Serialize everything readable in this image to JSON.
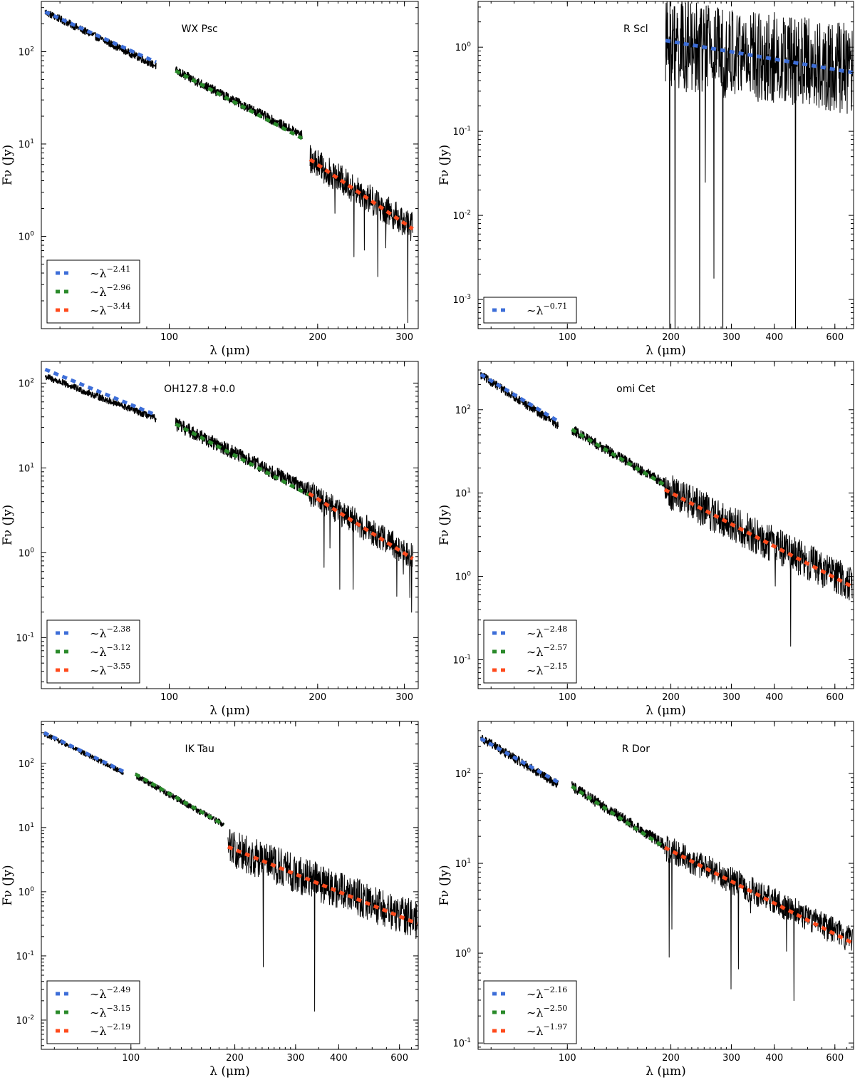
{
  "chart_data": [
    {
      "type": "line",
      "title": "WX Psc",
      "xlabel": "λ (μm)",
      "ylabel": "Fν (Jy)",
      "xscale": "log",
      "yscale": "log",
      "xlim": [
        55,
        320
      ],
      "ylim": [
        0.1,
        350
      ],
      "xticks": [
        {
          "v": 100,
          "label": "100"
        },
        {
          "v": 200,
          "label": "200"
        },
        {
          "v": 300,
          "label": "300"
        }
      ],
      "yticks": [
        {
          "v": 1,
          "base": "10",
          "exp": "0"
        },
        {
          "v": 10,
          "base": "10",
          "exp": "1"
        },
        {
          "v": 100,
          "base": "10",
          "exp": "2"
        }
      ],
      "legend_position": "lower-left",
      "segments": [
        {
          "x0": 56,
          "x1": 94,
          "y0": 270,
          "y1": 70,
          "noise": 0.04
        },
        {
          "x0": 103,
          "x1": 186,
          "y0": 62,
          "y1": 12.5,
          "noise": 0.05
        },
        {
          "x0": 193,
          "x1": 312,
          "y0": 6.8,
          "y1": 1.25,
          "noise": 0.16
        }
      ],
      "series": [
        {
          "name": "~λ^-2.41",
          "legend_base": "∼λ",
          "exponent": "−2.41",
          "color": "#3d6ed8",
          "x0": 56,
          "x1": 94,
          "y0": 270,
          "y1": 77
        },
        {
          "name": "~λ^-2.96",
          "legend_base": "∼λ",
          "exponent": "−2.96",
          "color": "#2a8a2a",
          "x0": 103,
          "x1": 186,
          "y0": 62,
          "y1": 11.5
        },
        {
          "name": "~λ^-3.44",
          "legend_base": "∼λ",
          "exponent": "−3.44",
          "color": "#ff4a1c",
          "x0": 193,
          "x1": 312,
          "y0": 6.8,
          "y1": 1.2
        }
      ]
    },
    {
      "type": "line",
      "title": "R Scl",
      "xlabel": "λ (μm)",
      "ylabel": "Fν (Jy)",
      "xscale": "log",
      "yscale": "log",
      "xlim": [
        55,
        680
      ],
      "ylim": [
        0.00045,
        3.5
      ],
      "xticks": [
        {
          "v": 100,
          "label": "100"
        },
        {
          "v": 200,
          "label": "200"
        },
        {
          "v": 300,
          "label": "300"
        },
        {
          "v": 400,
          "label": "400"
        },
        {
          "v": 600,
          "label": "600"
        }
      ],
      "yticks": [
        {
          "v": 0.001,
          "base": "10",
          "exp": "-3"
        },
        {
          "v": 0.01,
          "base": "10",
          "exp": "-2"
        },
        {
          "v": 0.1,
          "base": "10",
          "exp": "-1"
        },
        {
          "v": 1,
          "base": "10",
          "exp": "0"
        }
      ],
      "legend_position": "lower-left",
      "segments": [
        {
          "x0": 193,
          "x1": 675,
          "y0": 1.1,
          "y1": 0.55,
          "noise": 0.55
        }
      ],
      "series": [
        {
          "name": "~λ^-0.71",
          "legend_base": "∼λ",
          "exponent": "−0.71",
          "color": "#3d6ed8",
          "x0": 193,
          "x1": 675,
          "y0": 1.2,
          "y1": 0.5
        }
      ]
    },
    {
      "type": "line",
      "title": "OH127.8 +0.0",
      "xlabel": "λ (μm)",
      "ylabel": "Fν (Jy)",
      "xscale": "log",
      "yscale": "log",
      "xlim": [
        55,
        320
      ],
      "ylim": [
        0.025,
        180
      ],
      "xticks": [
        {
          "v": 100,
          "label": "100"
        },
        {
          "v": 200,
          "label": "200"
        },
        {
          "v": 300,
          "label": "300"
        }
      ],
      "yticks": [
        {
          "v": 0.1,
          "base": "10",
          "exp": "-1"
        },
        {
          "v": 1,
          "base": "10",
          "exp": "0"
        },
        {
          "v": 10,
          "base": "10",
          "exp": "1"
        },
        {
          "v": 100,
          "base": "10",
          "exp": "2"
        }
      ],
      "legend_position": "lower-left",
      "segments": [
        {
          "x0": 56,
          "x1": 94,
          "y0": 120,
          "y1": 38,
          "noise": 0.04
        },
        {
          "x0": 103,
          "x1": 192,
          "y0": 33,
          "y1": 5.5,
          "noise": 0.08
        },
        {
          "x0": 192,
          "x1": 312,
          "y0": 5.0,
          "y1": 0.9,
          "noise": 0.16
        }
      ],
      "series": [
        {
          "name": "~λ^-2.38",
          "legend_base": "∼λ",
          "exponent": "−2.38",
          "color": "#3d6ed8",
          "x0": 56,
          "x1": 94,
          "y0": 145,
          "y1": 42
        },
        {
          "name": "~λ^-3.12",
          "legend_base": "∼λ",
          "exponent": "−3.12",
          "color": "#2a8a2a",
          "x0": 103,
          "x1": 192,
          "y0": 33,
          "y1": 4.8
        },
        {
          "name": "~λ^-3.55",
          "legend_base": "∼λ",
          "exponent": "−3.55",
          "color": "#ff4a1c",
          "x0": 192,
          "x1": 312,
          "y0": 5.0,
          "y1": 0.85
        }
      ]
    },
    {
      "type": "line",
      "title": "omi Cet",
      "xlabel": "λ (μm)",
      "ylabel": "Fν (Jy)",
      "xscale": "log",
      "yscale": "log",
      "xlim": [
        55,
        680
      ],
      "ylim": [
        0.045,
        380
      ],
      "xticks": [
        {
          "v": 100,
          "label": "100"
        },
        {
          "v": 200,
          "label": "200"
        },
        {
          "v": 300,
          "label": "300"
        },
        {
          "v": 400,
          "label": "400"
        },
        {
          "v": 600,
          "label": "600"
        }
      ],
      "yticks": [
        {
          "v": 0.1,
          "base": "10",
          "exp": "-1"
        },
        {
          "v": 1,
          "base": "10",
          "exp": "0"
        },
        {
          "v": 10,
          "base": "10",
          "exp": "1"
        },
        {
          "v": 100,
          "base": "10",
          "exp": "2"
        }
      ],
      "legend_position": "lower-left",
      "segments": [
        {
          "x0": 56,
          "x1": 94,
          "y0": 260,
          "y1": 65,
          "noise": 0.05
        },
        {
          "x0": 103,
          "x1": 192,
          "y0": 58,
          "y1": 13,
          "noise": 0.06
        },
        {
          "x0": 192,
          "x1": 675,
          "y0": 11,
          "y1": 0.8,
          "noise": 0.22
        }
      ],
      "series": [
        {
          "name": "~λ^-2.48",
          "legend_base": "∼λ",
          "exponent": "−2.48",
          "color": "#3d6ed8",
          "x0": 56,
          "x1": 94,
          "y0": 265,
          "y1": 73
        },
        {
          "name": "~λ^-2.57",
          "legend_base": "∼λ",
          "exponent": "−2.57",
          "color": "#2a8a2a",
          "x0": 103,
          "x1": 192,
          "y0": 58,
          "y1": 12.5
        },
        {
          "name": "~λ^-2.15",
          "legend_base": "∼λ",
          "exponent": "−2.15",
          "color": "#ff4a1c",
          "x0": 192,
          "x1": 675,
          "y0": 11,
          "y1": 0.75
        }
      ]
    },
    {
      "type": "line",
      "title": "IK Tau",
      "xlabel": "λ (μm)",
      "ylabel": "Fν (Jy)",
      "xscale": "log",
      "yscale": "log",
      "xlim": [
        55,
        680
      ],
      "ylim": [
        0.0035,
        450
      ],
      "xticks": [
        {
          "v": 100,
          "label": "100"
        },
        {
          "v": 200,
          "label": "200"
        },
        {
          "v": 300,
          "label": "300"
        },
        {
          "v": 400,
          "label": "400"
        },
        {
          "v": 600,
          "label": "600"
        }
      ],
      "yticks": [
        {
          "v": 0.01,
          "base": "10",
          "exp": "-2"
        },
        {
          "v": 0.1,
          "base": "10",
          "exp": "-1"
        },
        {
          "v": 1,
          "base": "10",
          "exp": "0"
        },
        {
          "v": 10,
          "base": "10",
          "exp": "1"
        },
        {
          "v": 100,
          "base": "10",
          "exp": "2"
        }
      ],
      "legend_position": "lower-left",
      "segments": [
        {
          "x0": 56,
          "x1": 95,
          "y0": 290,
          "y1": 72,
          "noise": 0.04
        },
        {
          "x0": 103,
          "x1": 186,
          "y0": 65,
          "y1": 11,
          "noise": 0.05
        },
        {
          "x0": 191,
          "x1": 675,
          "y0": 5.0,
          "y1": 0.35,
          "noise": 0.3
        }
      ],
      "series": [
        {
          "name": "~λ^-2.49",
          "legend_base": "∼λ",
          "exponent": "−2.49",
          "color": "#3d6ed8",
          "x0": 56,
          "x1": 95,
          "y0": 300,
          "y1": 75
        },
        {
          "name": "~λ^-3.15",
          "legend_base": "∼λ",
          "exponent": "−3.15",
          "color": "#2a8a2a",
          "x0": 103,
          "x1": 186,
          "y0": 68,
          "y1": 11
        },
        {
          "name": "~λ^-2.19",
          "legend_base": "∼λ",
          "exponent": "−2.19",
          "color": "#ff4a1c",
          "x0": 191,
          "x1": 675,
          "y0": 5.0,
          "y1": 0.32
        }
      ]
    },
    {
      "type": "line",
      "title": "R Dor",
      "xlabel": "λ (μm)",
      "ylabel": "Fν (Jy)",
      "xscale": "log",
      "yscale": "log",
      "xlim": [
        55,
        680
      ],
      "ylim": [
        0.085,
        380
      ],
      "xticks": [
        {
          "v": 100,
          "label": "100"
        },
        {
          "v": 200,
          "label": "200"
        },
        {
          "v": 300,
          "label": "300"
        },
        {
          "v": 400,
          "label": "400"
        },
        {
          "v": 600,
          "label": "600"
        }
      ],
      "yticks": [
        {
          "v": 0.1,
          "base": "10",
          "exp": "-1"
        },
        {
          "v": 1,
          "base": "10",
          "exp": "0"
        },
        {
          "v": 10,
          "base": "10",
          "exp": "1"
        },
        {
          "v": 100,
          "base": "10",
          "exp": "2"
        }
      ],
      "legend_position": "lower-left",
      "segments": [
        {
          "x0": 56,
          "x1": 94,
          "y0": 250,
          "y1": 75,
          "noise": 0.05
        },
        {
          "x0": 103,
          "x1": 192,
          "y0": 72,
          "y1": 16,
          "noise": 0.06
        },
        {
          "x0": 192,
          "x1": 675,
          "y0": 15,
          "y1": 1.4,
          "noise": 0.15
        }
      ],
      "series": [
        {
          "name": "~λ^-2.16",
          "legend_base": "∼λ",
          "exponent": "−2.16",
          "color": "#3d6ed8",
          "x0": 56,
          "x1": 94,
          "y0": 245,
          "y1": 80
        },
        {
          "name": "~λ^-2.50",
          "legend_base": "∼λ",
          "exponent": "−2.50",
          "color": "#2a8a2a",
          "x0": 103,
          "x1": 192,
          "y0": 72,
          "y1": 15
        },
        {
          "name": "~λ^-1.97",
          "legend_base": "∼λ",
          "exponent": "−1.97",
          "color": "#ff4a1c",
          "x0": 192,
          "x1": 675,
          "y0": 15,
          "y1": 1.3
        }
      ]
    }
  ]
}
